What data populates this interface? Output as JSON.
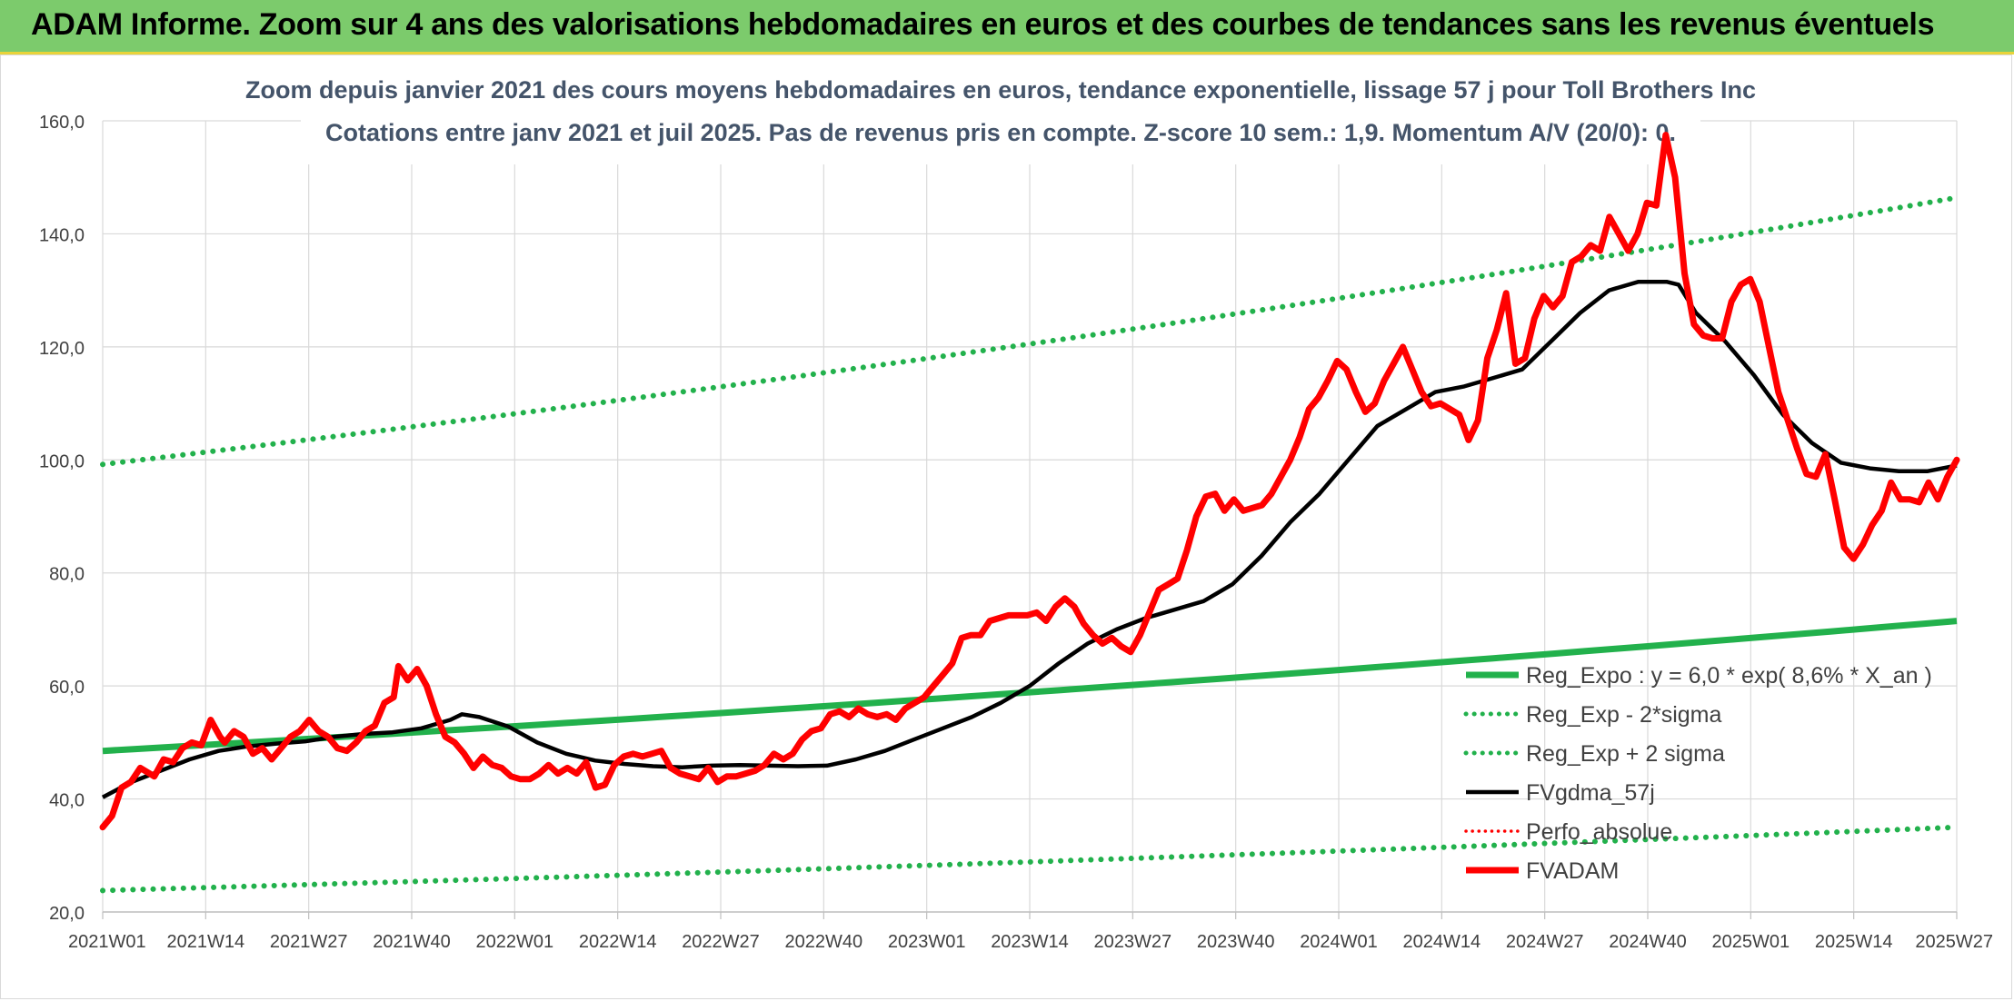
{
  "header": {
    "title": "ADAM Informe. Zoom sur 4 ans des valorisations hebdomadaires en euros et des courbes de tendances sans les revenus éventuels"
  },
  "chart_data": {
    "type": "line",
    "title": "Zoom depuis janvier 2021 des cours moyens hebdomadaires en euros, tendance exponentielle, lissage 57 j pour Toll Brothers Inc",
    "subtitle": "Cotations entre janv 2021 et juil 2025. Pas de revenus pris en compte. Z-score 10 sem.: 1,9. Momentum A/V (20/0): 0.",
    "xlabel": "",
    "ylabel": "",
    "ylim": [
      20,
      160
    ],
    "y_ticks": [
      "20,0",
      "40,0",
      "60,0",
      "80,0",
      "100,0",
      "120,0",
      "140,0",
      "160,0"
    ],
    "x_ticks": [
      "2021W01",
      "2021W14",
      "2021W27",
      "2021W40",
      "2022W01",
      "2022W14",
      "2022W27",
      "2022W40",
      "2023W01",
      "2023W14",
      "2023W27",
      "2023W40",
      "2024W01",
      "2024W14",
      "2024W27",
      "2024W40",
      "2025W01",
      "2025W14",
      "2025W27"
    ],
    "x_week_index_range": [
      0,
      234
    ],
    "grid": true,
    "legend_position": "bottom-right",
    "colors": {
      "reg_expo": "#22b14c",
      "sigma_bands": "#22b14c",
      "fvgdma": "#000000",
      "perfo": "#ff0000",
      "fvadam": "#ff0000"
    },
    "series": [
      {
        "name": "Reg_Expo : y = 6,0 * exp( 8,6% *  X_an )",
        "style": "solid",
        "start": 48.5,
        "end": 71.5
      },
      {
        "name": "Reg_Exp - 2*sigma",
        "style": "dotted",
        "start": 23.8,
        "end": 35.0
      },
      {
        "name": "Reg_Exp + 2 sigma",
        "style": "dotted",
        "start": 99.2,
        "end": 146.4
      },
      {
        "name": "FVgdma_57j",
        "style": "solid",
        "points": [
          [
            0,
            40.3
          ],
          [
            5,
            43
          ],
          [
            10,
            45
          ],
          [
            15,
            47
          ],
          [
            20,
            48.5
          ],
          [
            25,
            49.3
          ],
          [
            30,
            49.8
          ],
          [
            35,
            50.2
          ],
          [
            40,
            51
          ],
          [
            45,
            51.5
          ],
          [
            50,
            51.8
          ],
          [
            55,
            52.5
          ],
          [
            60,
            54
          ],
          [
            62,
            55
          ],
          [
            65,
            54.5
          ],
          [
            70,
            52.8
          ],
          [
            75,
            50
          ],
          [
            80,
            48
          ],
          [
            85,
            46.8
          ],
          [
            90,
            46.2
          ],
          [
            95,
            45.8
          ],
          [
            100,
            45.6
          ],
          [
            105,
            45.9
          ],
          [
            110,
            46
          ],
          [
            115,
            45.9
          ],
          [
            120,
            45.8
          ],
          [
            125,
            45.9
          ],
          [
            130,
            47
          ],
          [
            135,
            48.5
          ],
          [
            140,
            50.5
          ],
          [
            145,
            52.5
          ],
          [
            150,
            54.5
          ],
          [
            155,
            57
          ],
          [
            160,
            60
          ],
          [
            165,
            64
          ],
          [
            170,
            67.5
          ],
          [
            175,
            70
          ],
          [
            180,
            72
          ],
          [
            185,
            73.5
          ],
          [
            190,
            75
          ],
          [
            195,
            78
          ],
          [
            200,
            83
          ],
          [
            205,
            89
          ],
          [
            210,
            94
          ],
          [
            215,
            100
          ],
          [
            220,
            106
          ],
          [
            225,
            109
          ],
          [
            230,
            112
          ],
          [
            235,
            113
          ],
          [
            240,
            114.5
          ],
          [
            245,
            116
          ],
          [
            250,
            121
          ],
          [
            255,
            126
          ],
          [
            260,
            130
          ],
          [
            265,
            131.5
          ],
          [
            270,
            131.5
          ],
          [
            272,
            131
          ],
          [
            275,
            126
          ],
          [
            280,
            121
          ],
          [
            285,
            115
          ],
          [
            290,
            108
          ],
          [
            295,
            103
          ],
          [
            300,
            99.5
          ],
          [
            305,
            98.5
          ],
          [
            310,
            98
          ],
          [
            315,
            98
          ],
          [
            320,
            99
          ]
        ]
      },
      {
        "name": "Perfo_absolue",
        "style": "dotted"
      },
      {
        "name": "FVADAM",
        "style": "solid",
        "points": [
          [
            0,
            35
          ],
          [
            2,
            37
          ],
          [
            4,
            42
          ],
          [
            6,
            43
          ],
          [
            8,
            45.5
          ],
          [
            11,
            44
          ],
          [
            13,
            47
          ],
          [
            15,
            46.5
          ],
          [
            17,
            49
          ],
          [
            19,
            50
          ],
          [
            21,
            49.5
          ],
          [
            23,
            54
          ],
          [
            25,
            51
          ],
          [
            26,
            50
          ],
          [
            28,
            52
          ],
          [
            30,
            51
          ],
          [
            32,
            48
          ],
          [
            34,
            49
          ],
          [
            36,
            47
          ],
          [
            38,
            49
          ],
          [
            40,
            51
          ],
          [
            42,
            52
          ],
          [
            44,
            54
          ],
          [
            46,
            52
          ],
          [
            48,
            51
          ],
          [
            50,
            49
          ],
          [
            52,
            48.5
          ],
          [
            54,
            50
          ],
          [
            56,
            52
          ],
          [
            58,
            53
          ],
          [
            60,
            57
          ],
          [
            62,
            58
          ],
          [
            63,
            63.5
          ],
          [
            65,
            61
          ],
          [
            67,
            63
          ],
          [
            69,
            60
          ],
          [
            71,
            55
          ],
          [
            73,
            51
          ],
          [
            75,
            50
          ],
          [
            77,
            48
          ],
          [
            79,
            45.5
          ],
          [
            81,
            47.5
          ],
          [
            83,
            46
          ],
          [
            85,
            45.5
          ],
          [
            87,
            44
          ],
          [
            89,
            43.5
          ],
          [
            91,
            43.5
          ],
          [
            93,
            44.5
          ],
          [
            95,
            46
          ],
          [
            97,
            44.5
          ],
          [
            99,
            45.5
          ],
          [
            101,
            44.5
          ],
          [
            103,
            46.5
          ],
          [
            105,
            42
          ],
          [
            107,
            42.5
          ],
          [
            109,
            46
          ],
          [
            111,
            47.5
          ],
          [
            113,
            48
          ],
          [
            115,
            47.5
          ],
          [
            117,
            48
          ],
          [
            119,
            48.5
          ],
          [
            121,
            45.5
          ],
          [
            123,
            44.5
          ],
          [
            125,
            44
          ],
          [
            127,
            43.5
          ],
          [
            129,
            45.5
          ],
          [
            131,
            43
          ],
          [
            133,
            44
          ],
          [
            135,
            44
          ],
          [
            137,
            44.5
          ],
          [
            139,
            45
          ],
          [
            141,
            46
          ],
          [
            143,
            48
          ],
          [
            145,
            47
          ],
          [
            147,
            48
          ],
          [
            149,
            50.5
          ],
          [
            151,
            52
          ],
          [
            153,
            52.5
          ],
          [
            155,
            55
          ],
          [
            157,
            55.5
          ],
          [
            159,
            54.5
          ],
          [
            161,
            56
          ],
          [
            163,
            55
          ],
          [
            165,
            54.5
          ],
          [
            167,
            55
          ],
          [
            169,
            54
          ],
          [
            171,
            56
          ],
          [
            173,
            57
          ],
          [
            175,
            58
          ],
          [
            177,
            60
          ],
          [
            179,
            62
          ],
          [
            181,
            64
          ],
          [
            183,
            68.5
          ],
          [
            185,
            69
          ],
          [
            187,
            69
          ],
          [
            189,
            71.5
          ],
          [
            191,
            72
          ],
          [
            193,
            72.5
          ],
          [
            195,
            72.5
          ],
          [
            197,
            72.5
          ],
          [
            199,
            73
          ],
          [
            201,
            71.5
          ],
          [
            203,
            74
          ],
          [
            205,
            75.5
          ],
          [
            207,
            74
          ],
          [
            209,
            71
          ],
          [
            211,
            69
          ],
          [
            213,
            67.5
          ],
          [
            215,
            68.5
          ],
          [
            217,
            67
          ],
          [
            219,
            66
          ],
          [
            221,
            69
          ],
          [
            223,
            73
          ],
          [
            225,
            77
          ],
          [
            227,
            78
          ],
          [
            229,
            79
          ],
          [
            231,
            84
          ],
          [
            233,
            90
          ],
          [
            235,
            93.5
          ],
          [
            237,
            94
          ],
          [
            239,
            91
          ],
          [
            241,
            93
          ],
          [
            243,
            91
          ],
          [
            245,
            91.5
          ],
          [
            247,
            92
          ],
          [
            249,
            94
          ],
          [
            251,
            97
          ],
          [
            253,
            100
          ],
          [
            255,
            104
          ],
          [
            257,
            109
          ],
          [
            259,
            111
          ],
          [
            261,
            114
          ],
          [
            263,
            117.5
          ],
          [
            265,
            116
          ],
          [
            267,
            112
          ],
          [
            269,
            108.5
          ],
          [
            271,
            110
          ],
          [
            273,
            114
          ],
          [
            275,
            117
          ],
          [
            277,
            120
          ],
          [
            279,
            116
          ],
          [
            281,
            112
          ],
          [
            283,
            109.5
          ],
          [
            285,
            110
          ],
          [
            287,
            109
          ],
          [
            289,
            108
          ],
          [
            291,
            103.5
          ],
          [
            293,
            107
          ],
          [
            295,
            118
          ],
          [
            297,
            123
          ],
          [
            299,
            129.5
          ],
          [
            301,
            117
          ],
          [
            303,
            118
          ],
          [
            305,
            125
          ],
          [
            307,
            129
          ],
          [
            309,
            127
          ],
          [
            311,
            129
          ],
          [
            313,
            135
          ],
          [
            315,
            136
          ],
          [
            317,
            138
          ],
          [
            319,
            137
          ],
          [
            321,
            143
          ],
          [
            323,
            140
          ],
          [
            325,
            137
          ],
          [
            327,
            140
          ],
          [
            329,
            145.5
          ],
          [
            331,
            145
          ],
          [
            333,
            157.5
          ],
          [
            335,
            150
          ],
          [
            337,
            133
          ],
          [
            339,
            124
          ],
          [
            341,
            122
          ],
          [
            343,
            121.5
          ],
          [
            345,
            121.5
          ],
          [
            347,
            128
          ],
          [
            349,
            131
          ],
          [
            351,
            132
          ],
          [
            353,
            128
          ],
          [
            355,
            120
          ],
          [
            357,
            112
          ],
          [
            359,
            107
          ],
          [
            361,
            102
          ],
          [
            363,
            97.5
          ],
          [
            365,
            97
          ],
          [
            367,
            101
          ],
          [
            369,
            93
          ],
          [
            371,
            84.5
          ],
          [
            373,
            82.5
          ],
          [
            375,
            85
          ],
          [
            377,
            88.5
          ],
          [
            379,
            91
          ],
          [
            381,
            96
          ],
          [
            383,
            93
          ],
          [
            385,
            93
          ],
          [
            387,
            92.5
          ],
          [
            389,
            96
          ],
          [
            391,
            93
          ],
          [
            393,
            97
          ],
          [
            395,
            100
          ]
        ],
        "x_scale": "index_0_395"
      }
    ]
  }
}
